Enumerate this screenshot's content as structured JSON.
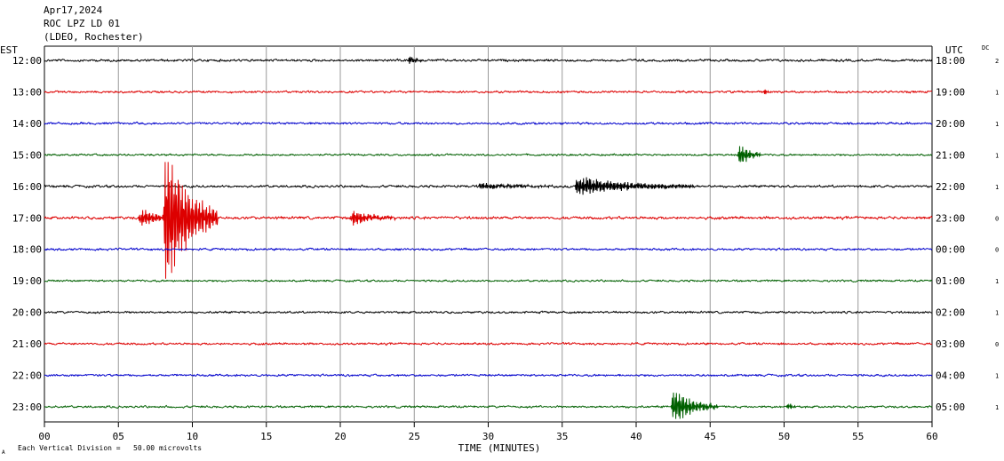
{
  "header": {
    "date": "Apr17,2024",
    "station": "ROC LPZ LD 01",
    "network": "(LDEO, Rochester)",
    "left_zone": "EST",
    "right_zone": "UTC",
    "dc_label": "DC"
  },
  "footer": {
    "scale_note": "Each Vertical Division =   50.00 microvolts",
    "scale_mark": "A"
  },
  "chart_data": {
    "type": "line",
    "subtype": "helicorder",
    "xlabel": "TIME (MINUTES)",
    "xlim": [
      0,
      60
    ],
    "x_ticks": [
      "00",
      "05",
      "10",
      "15",
      "20",
      "25",
      "30",
      "35",
      "40",
      "45",
      "50",
      "55",
      "60"
    ],
    "grid": "vertical lines every 5 minutes",
    "trace_colors": [
      "#000000",
      "#dd0000",
      "#0000cc",
      "#006000"
    ],
    "rows": [
      {
        "est": "12:00",
        "utc": "18:00",
        "dc": "2",
        "color": "#000000",
        "amp": 2.2,
        "events": [
          {
            "t": 24.7,
            "dur": 0.8,
            "amp": 7
          }
        ]
      },
      {
        "est": "13:00",
        "utc": "19:00",
        "dc": "1",
        "color": "#dd0000",
        "amp": 2.0,
        "events": [
          {
            "t": 48.7,
            "dur": 0.4,
            "amp": 4
          }
        ]
      },
      {
        "est": "14:00",
        "utc": "20:00",
        "dc": "1",
        "color": "#0000cc",
        "amp": 2.0,
        "events": []
      },
      {
        "est": "15:00",
        "utc": "21:00",
        "dc": "1",
        "color": "#006000",
        "amp": 1.8,
        "events": [
          {
            "t": 47.0,
            "dur": 1.4,
            "amp": 16
          }
        ]
      },
      {
        "est": "16:00",
        "utc": "22:00",
        "dc": "1",
        "color": "#000000",
        "amp": 2.2,
        "events": [
          {
            "t": 36.0,
            "dur": 8,
            "amp": 12
          },
          {
            "t": 29.5,
            "dur": 5,
            "amp": 4
          }
        ]
      },
      {
        "est": "17:00",
        "utc": "23:00",
        "dc": "0",
        "color": "#dd0000",
        "amp": 2.5,
        "events": [
          {
            "t": 8.2,
            "dur": 3.5,
            "amp": 95
          },
          {
            "t": 6.5,
            "dur": 3,
            "amp": 12
          },
          {
            "t": 20.8,
            "dur": 3,
            "amp": 10
          }
        ]
      },
      {
        "est": "18:00",
        "utc": "00:00",
        "dc": "0",
        "color": "#0000cc",
        "amp": 2.0,
        "events": []
      },
      {
        "est": "19:00",
        "utc": "01:00",
        "dc": "1",
        "color": "#006000",
        "amp": 1.8,
        "events": []
      },
      {
        "est": "20:00",
        "utc": "02:00",
        "dc": "1",
        "color": "#000000",
        "amp": 2.0,
        "events": []
      },
      {
        "est": "21:00",
        "utc": "03:00",
        "dc": "0",
        "color": "#dd0000",
        "amp": 2.0,
        "events": []
      },
      {
        "est": "22:00",
        "utc": "04:00",
        "dc": "1",
        "color": "#0000cc",
        "amp": 2.0,
        "events": []
      },
      {
        "est": "23:00",
        "utc": "05:00",
        "dc": "1",
        "color": "#006000",
        "amp": 2.0,
        "events": [
          {
            "t": 42.5,
            "dur": 3,
            "amp": 22
          },
          {
            "t": 50.3,
            "dur": 0.6,
            "amp": 5
          }
        ]
      }
    ]
  }
}
